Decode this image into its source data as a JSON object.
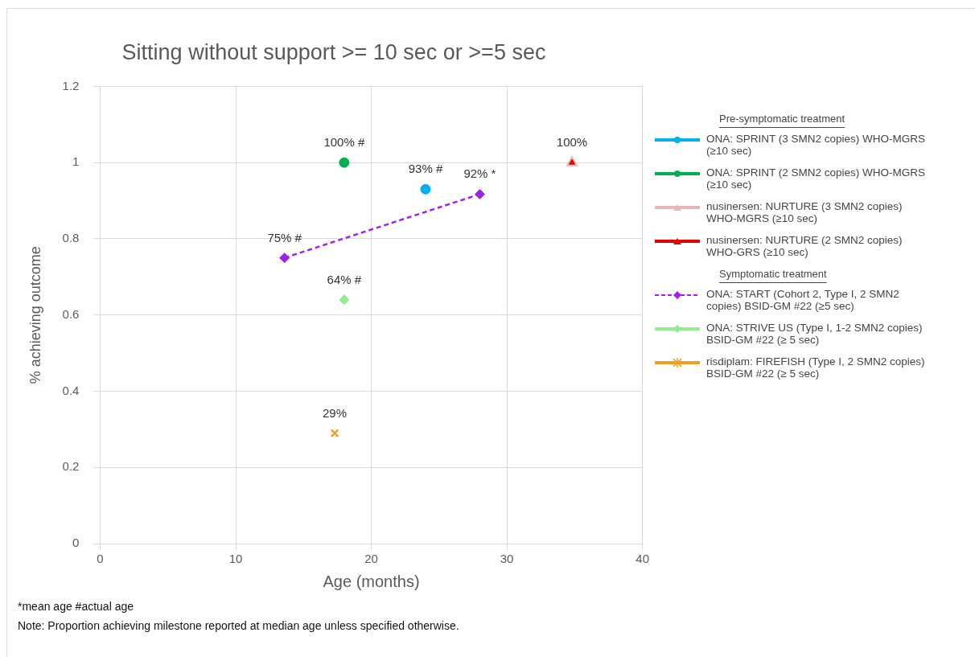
{
  "chart_data": {
    "type": "scatter",
    "title": "Sitting without support >= 10 sec or >=5 sec",
    "xlabel": "Age (months)",
    "ylabel": "% achieving outcome",
    "xlim": [
      0,
      40
    ],
    "xticks": [
      0,
      10,
      20,
      30,
      40
    ],
    "ylim": [
      0,
      1.2
    ],
    "yticks": [
      0,
      0.2,
      0.4,
      0.6,
      0.8,
      1,
      1.2
    ],
    "grid": true,
    "legend": "right",
    "annotations": [
      "Pre-symptomatic treatment",
      "Symptomatic treatment",
      "*mean age #actual age",
      "Note:  Proportion achieving milestone reported at median age unless specified otherwise."
    ],
    "series": [
      {
        "name": "ONA: SPRINT (3  SMN2 copies) WHO-MGRS (≥10 sec)",
        "color": "#00b0f0",
        "marker": "circle",
        "x": [
          24
        ],
        "values": [
          0.93
        ],
        "value_labels": [
          "93% #"
        ]
      },
      {
        "name": "ONA: SPRINT (2  SMN2 copies) WHO-MGRS (≥10 sec)",
        "color": "#00b050",
        "marker": "circle",
        "x": [
          18
        ],
        "values": [
          1
        ],
        "value_labels": [
          "100% #"
        ]
      },
      {
        "name": "nusinersen: NURTURE  (3 SMN2 copies) WHO-MGRS (≥10 sec)",
        "color": "#e6b8b7",
        "marker": "triangle",
        "x": [
          34.8
        ],
        "values": [
          1
        ],
        "value_labels": [
          "100%"
        ]
      },
      {
        "name": "nusinersen: NURTURE  (2 SMN2 copies) WHO-GRS (≥10 sec)",
        "color": "#e00000",
        "marker": "triangle",
        "x": [
          34.8
        ],
        "values": [
          1
        ]
      },
      {
        "name": "ONA: START (Cohort 2, Type I, 2 SMN2 copies) BSID-GM #22 (≥5 sec)",
        "type": "line",
        "line_style": "dashed",
        "color": "#a020f0",
        "marker": "diamond",
        "x": [
          13.6,
          28
        ],
        "values": [
          0.75,
          0.917
        ],
        "value_labels": [
          "75% #",
          "92% *"
        ]
      },
      {
        "name": "ONA: STRIVE US (Type I, 1-2 SMN2 copies) BSID-GM #22 (≥ 5 sec)",
        "color": "#90ee90",
        "marker": "diamond",
        "x": [
          18
        ],
        "values": [
          0.64
        ],
        "value_labels": [
          "64% #"
        ]
      },
      {
        "name": "risdiplam: FIREFISH (Type I, 2 SMN2 copies) BSID-GM #22 (≥ 5 sec)",
        "color": "#f0a020",
        "marker": "cross",
        "x": [
          17.3
        ],
        "values": [
          0.29
        ],
        "value_labels": [
          "29%"
        ]
      }
    ]
  }
}
